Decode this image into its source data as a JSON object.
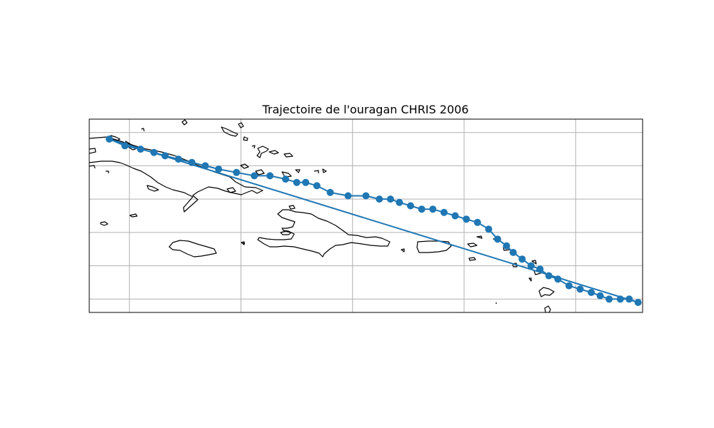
{
  "title": "Trajectoire de l'ouragan CHRIS 2006",
  "colors": {
    "track": "#1f77b4",
    "grid": "#b0b0b0",
    "coast": "#000000",
    "frame": "#000000"
  },
  "map": {
    "extent": {
      "lon": [
        -81.8,
        -57.0
      ],
      "lat": [
        16.6,
        22.4
      ]
    },
    "gridlines": {
      "lon": [
        -80,
        -75,
        -70,
        -65,
        -60
      ],
      "lat": [
        17,
        18,
        19,
        20,
        21,
        22
      ]
    },
    "coastline": true
  },
  "chart_data": {
    "type": "scatter",
    "title": "Trajectoire de l'ouragan CHRIS 2006",
    "series": [
      {
        "lon": [
          -80.9,
          -80.2,
          -79.5,
          -78.9,
          -78.4,
          -77.8,
          -77.2,
          -76.6,
          -76.0,
          -75.2,
          -74.4,
          -73.7,
          -73.0,
          -72.5,
          -72.1,
          -71.6,
          -71.0,
          -70.2,
          -69.4,
          -68.8,
          -68.3,
          -67.9,
          -67.4,
          -66.9,
          -66.4,
          -65.9,
          -65.4,
          -64.9,
          -64.4,
          -63.9,
          -63.5,
          -63.1,
          -62.8,
          -62.4,
          -62.0,
          -61.6,
          -61.2,
          -60.8,
          -60.3,
          -59.8,
          -59.3,
          -58.9,
          -58.5,
          -58.0,
          -57.6,
          -57.2
        ],
        "lat": [
          21.8,
          21.6,
          21.5,
          21.4,
          21.3,
          21.2,
          21.1,
          21.0,
          20.9,
          20.8,
          20.7,
          20.7,
          20.6,
          20.5,
          20.5,
          20.4,
          20.2,
          20.1,
          20.1,
          20.0,
          20.0,
          19.9,
          19.8,
          19.7,
          19.7,
          19.6,
          19.5,
          19.4,
          19.3,
          19.1,
          18.8,
          18.6,
          18.4,
          18.2,
          18.0,
          17.9,
          17.7,
          17.6,
          17.4,
          17.3,
          17.2,
          17.1,
          17.0,
          17.0,
          17.0,
          16.9
        ]
      }
    ]
  }
}
